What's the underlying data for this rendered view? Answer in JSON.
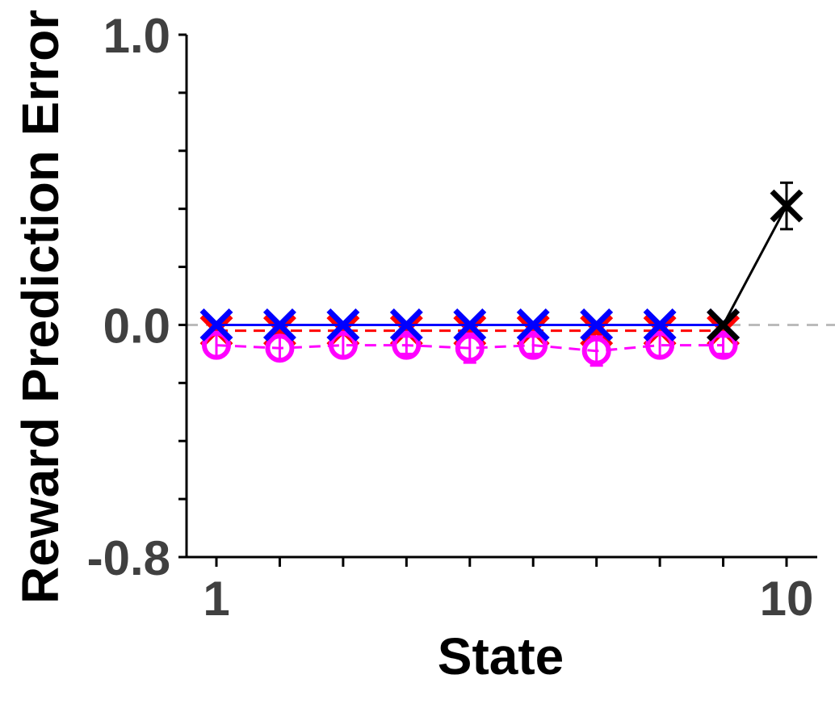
{
  "chart_data": {
    "type": "line",
    "xlabel": "State",
    "ylabel": "Reward Prediction Error",
    "xlim": [
      0.55,
      10.5
    ],
    "ylim": [
      -0.8,
      1.0
    ],
    "x_tick_labels": [
      {
        "x": 1,
        "label": "1"
      },
      {
        "x": 10,
        "label": "10"
      }
    ],
    "x_minor_ticks": [
      1,
      2,
      3,
      4,
      5,
      6,
      7,
      8,
      9,
      10
    ],
    "y_tick_labels": [
      {
        "y": 1.0,
        "label": "1.0"
      },
      {
        "y": 0.0,
        "label": "0.0"
      },
      {
        "y": -0.8,
        "label": "-0.8"
      }
    ],
    "y_minor_ticks": [
      1.0,
      0.8,
      0.6,
      0.4,
      0.2,
      0.0,
      -0.2,
      -0.4,
      -0.6,
      -0.8
    ],
    "reference_line": {
      "y": 0.0,
      "color": "#bbbbbb",
      "style": "dashed"
    },
    "series": [
      {
        "color": "#ff0000",
        "line_style": "dashed",
        "marker": "x",
        "x": [
          1,
          2,
          3,
          4,
          5,
          6,
          7,
          8,
          9
        ],
        "y": [
          -0.02,
          -0.02,
          -0.02,
          -0.02,
          -0.02,
          -0.02,
          -0.02,
          -0.02,
          -0.02
        ],
        "err": [
          0.01,
          0.01,
          0.01,
          0.01,
          0.01,
          0.01,
          0.01,
          0.01,
          0.01
        ]
      },
      {
        "color": "#ff00ff",
        "line_style": "dashed",
        "marker": "circle",
        "x": [
          1,
          2,
          3,
          4,
          5,
          6,
          7,
          8,
          9
        ],
        "y": [
          -0.07,
          -0.08,
          -0.07,
          -0.07,
          -0.08,
          -0.07,
          -0.09,
          -0.07,
          -0.07
        ],
        "err": [
          0.04,
          0.04,
          0.04,
          0.03,
          0.05,
          0.03,
          0.05,
          0.04,
          0.03
        ]
      },
      {
        "color": "#0000ff",
        "line_style": "solid",
        "marker": "x",
        "x": [
          1,
          2,
          3,
          4,
          5,
          6,
          7,
          8,
          9
        ],
        "y": [
          0.0,
          0.0,
          0.0,
          0.0,
          0.0,
          0.0,
          0.0,
          0.0,
          0.0
        ],
        "err": [
          0.0,
          0.0,
          0.0,
          0.0,
          0.0,
          0.0,
          0.0,
          0.0,
          0.0
        ]
      },
      {
        "color": "#000000",
        "line_style": "solid",
        "marker": "x",
        "x": [
          9,
          10
        ],
        "y": [
          0.0,
          0.41
        ],
        "err": [
          0.0,
          0.08
        ]
      }
    ]
  }
}
